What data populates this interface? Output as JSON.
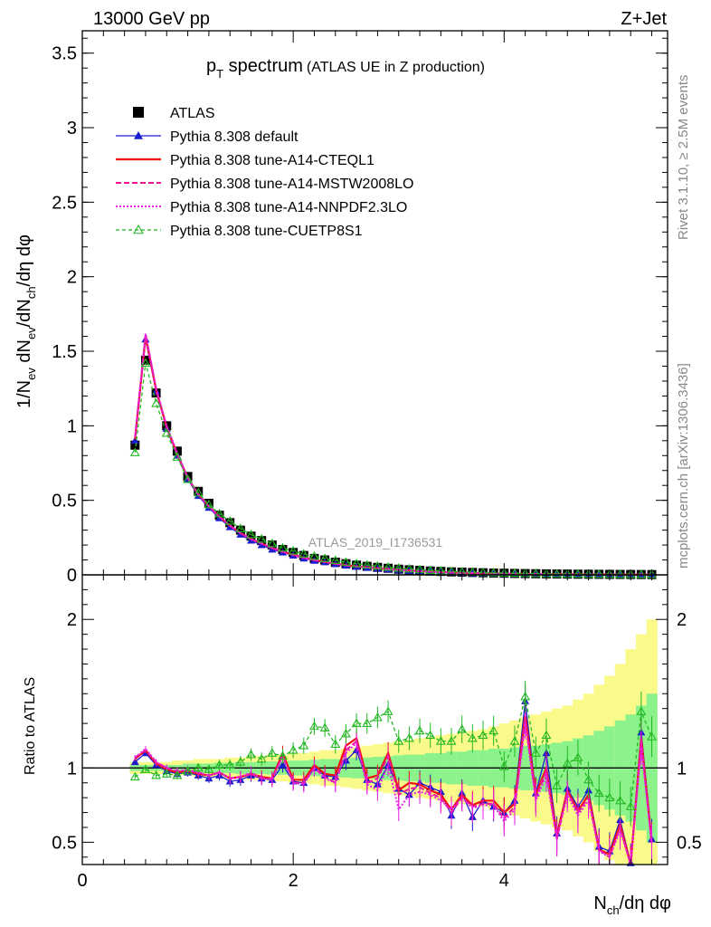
{
  "header": {
    "energy": "13000 GeV pp",
    "process": "Z+Jet",
    "analysis_id": "ATLAS_2019_I1736531",
    "rivet_info": "Rivet 3.1.10, ≥ 2.5M events",
    "source": "mcplots.cern.ch [arXiv:1306.3436]"
  },
  "colors": {
    "data": "#000000",
    "default": "#1c1ccf",
    "cteql1": "#f01010",
    "mstw": "#f0149a",
    "nnpdf": "#e81ee8",
    "cuetp8s1": "#22b822",
    "band_inner": "#8cf28c",
    "band_outer": "#fafa8a"
  },
  "chart_data": [
    {
      "type": "line",
      "panel": "main",
      "title_main": "p",
      "title_sub": "T",
      "title_rest": " spectrum",
      "title_small": "(ATLAS UE in Z production)",
      "ylabel_parts": [
        "1/N",
        "ev",
        " dN",
        "ev",
        "/dN",
        "ch",
        "/dη dφ"
      ],
      "xlabel_parts": [
        "N",
        "ch",
        "/dη dφ"
      ],
      "xlim": [
        0,
        5.55
      ],
      "ylim": [
        0,
        3.65
      ],
      "x_ticks": [
        0,
        2,
        4
      ],
      "y_ticks": [
        0,
        0.5,
        1,
        1.5,
        2,
        2.5,
        3,
        3.5
      ],
      "y_tick_labels": [
        "0",
        "0.5",
        "1",
        "1.5",
        "2",
        "2.5",
        "3",
        "3.5"
      ],
      "legend_position": "top-left",
      "x": [
        0.5,
        0.6,
        0.7,
        0.8,
        0.9,
        1.0,
        1.1,
        1.2,
        1.3,
        1.4,
        1.5,
        1.6,
        1.7,
        1.8,
        1.9,
        2.0,
        2.1,
        2.2,
        2.3,
        2.4,
        2.5,
        2.6,
        2.7,
        2.8,
        2.9,
        3.0,
        3.1,
        3.2,
        3.3,
        3.4,
        3.5,
        3.6,
        3.7,
        3.8,
        3.9,
        4.0,
        4.1,
        4.2,
        4.3,
        4.4,
        4.5,
        4.6,
        4.7,
        4.8,
        4.9,
        5.0,
        5.1,
        5.2,
        5.3,
        5.4
      ],
      "series": [
        {
          "name": "ATLAS",
          "key": "data",
          "marker": "square",
          "values": [
            0.87,
            1.44,
            1.22,
            1.0,
            0.83,
            0.66,
            0.56,
            0.48,
            0.4,
            0.35,
            0.3,
            0.26,
            0.23,
            0.2,
            0.17,
            0.15,
            0.13,
            0.11,
            0.1,
            0.085,
            0.075,
            0.065,
            0.057,
            0.05,
            0.044,
            0.038,
            0.034,
            0.03,
            0.026,
            0.023,
            0.02,
            0.018,
            0.016,
            0.014,
            0.012,
            0.011,
            0.0095,
            0.0085,
            0.0075,
            0.0066,
            0.0058,
            0.0051,
            0.0045,
            0.004,
            0.0035,
            0.0031,
            0.0027,
            0.0024,
            0.0021,
            0.0019
          ]
        },
        {
          "name": "Pythia 8.308 default",
          "key": "default",
          "marker": "triangle",
          "values": [
            0.9,
            1.58,
            1.23,
            0.98,
            0.8,
            0.64,
            0.53,
            0.45,
            0.38,
            0.32,
            0.27,
            0.23,
            0.2,
            0.17,
            0.15,
            0.13,
            0.11,
            0.095,
            0.085,
            0.072,
            0.062,
            0.055,
            0.048,
            0.042,
            0.036,
            0.031,
            0.027,
            0.024,
            0.021,
            0.018,
            0.015,
            0.013,
            0.011,
            0.0095,
            0.0085,
            0.0075,
            0.0065,
            0.0058,
            0.005,
            0.0044,
            0.0039,
            0.0034,
            0.003,
            0.0026,
            0.0023,
            0.002,
            0.0018,
            0.0015,
            0.0013,
            0.0011
          ]
        },
        {
          "name": "Pythia 8.308 tune-A14-CTEQL1",
          "key": "cteql1",
          "marker": "none",
          "values": [
            0.91,
            1.6,
            1.24,
            0.99,
            0.81,
            0.65,
            0.54,
            0.46,
            0.39,
            0.33,
            0.28,
            0.24,
            0.21,
            0.18,
            0.155,
            0.135,
            0.115,
            0.1,
            0.087,
            0.075,
            0.065,
            0.057,
            0.05,
            0.044,
            0.038,
            0.033,
            0.029,
            0.025,
            0.022,
            0.019,
            0.016,
            0.014,
            0.012,
            0.01,
            0.009,
            0.008,
            0.007,
            0.006,
            0.0052,
            0.0046,
            0.004,
            0.0035,
            0.0031,
            0.0027,
            0.0024,
            0.0021,
            0.0018,
            0.0016,
            0.0014,
            0.0012
          ]
        },
        {
          "name": "Pythia 8.308 tune-A14-MSTW2008LO",
          "key": "mstw",
          "marker": "none",
          "values": [
            0.92,
            1.61,
            1.25,
            0.99,
            0.81,
            0.65,
            0.54,
            0.46,
            0.39,
            0.33,
            0.28,
            0.24,
            0.21,
            0.18,
            0.155,
            0.133,
            0.114,
            0.098,
            0.086,
            0.074,
            0.064,
            0.056,
            0.049,
            0.043,
            0.037,
            0.032,
            0.028,
            0.025,
            0.021,
            0.018,
            0.016,
            0.014,
            0.012,
            0.01,
            0.009,
            0.008,
            0.007,
            0.006,
            0.0052,
            0.0045,
            0.0039,
            0.0034,
            0.003,
            0.0026,
            0.0023,
            0.002,
            0.0017,
            0.0015,
            0.0013,
            0.0011
          ]
        },
        {
          "name": "Pythia 8.308 tune-A14-NNPDF2.3LO",
          "key": "nnpdf",
          "marker": "none",
          "values": [
            0.93,
            1.62,
            1.25,
            1.0,
            0.82,
            0.65,
            0.54,
            0.46,
            0.39,
            0.33,
            0.28,
            0.24,
            0.21,
            0.18,
            0.155,
            0.133,
            0.114,
            0.098,
            0.086,
            0.074,
            0.064,
            0.056,
            0.049,
            0.043,
            0.037,
            0.032,
            0.028,
            0.025,
            0.021,
            0.018,
            0.016,
            0.014,
            0.012,
            0.01,
            0.009,
            0.008,
            0.007,
            0.006,
            0.0052,
            0.0045,
            0.0039,
            0.0034,
            0.003,
            0.0026,
            0.0023,
            0.002,
            0.0017,
            0.0015,
            0.0013,
            0.0011
          ]
        },
        {
          "name": "Pythia 8.308 tune-CUETP8S1",
          "key": "cuetp8s1",
          "marker": "open-triangle",
          "values": [
            0.82,
            1.42,
            1.15,
            0.95,
            0.79,
            0.64,
            0.55,
            0.47,
            0.41,
            0.36,
            0.31,
            0.27,
            0.24,
            0.21,
            0.18,
            0.16,
            0.14,
            0.125,
            0.11,
            0.097,
            0.085,
            0.075,
            0.066,
            0.058,
            0.051,
            0.045,
            0.04,
            0.035,
            0.03,
            0.026,
            0.023,
            0.02,
            0.018,
            0.016,
            0.014,
            0.012,
            0.011,
            0.0095,
            0.0083,
            0.0072,
            0.0063,
            0.0055,
            0.0048,
            0.0042,
            0.0037,
            0.0032,
            0.0028,
            0.0025,
            0.0022,
            0.0019
          ]
        }
      ]
    },
    {
      "type": "line",
      "panel": "ratio",
      "ylabel": "Ratio to ATLAS",
      "xlim": [
        0,
        5.55
      ],
      "ylim": [
        0.35,
        2.3
      ],
      "x_ticks": [
        0,
        2,
        4
      ],
      "x_tick_labels": [
        "0",
        "2",
        "4"
      ],
      "y_ticks": [
        0.5,
        1,
        2
      ],
      "y_tick_labels": [
        "0.5",
        "1",
        "2"
      ],
      "x": [
        0.5,
        0.6,
        0.7,
        0.8,
        0.9,
        1.0,
        1.1,
        1.2,
        1.3,
        1.4,
        1.5,
        1.6,
        1.7,
        1.8,
        1.9,
        2.0,
        2.1,
        2.2,
        2.3,
        2.4,
        2.5,
        2.6,
        2.7,
        2.8,
        2.9,
        3.0,
        3.1,
        3.2,
        3.3,
        3.4,
        3.5,
        3.6,
        3.7,
        3.8,
        3.9,
        4.0,
        4.1,
        4.2,
        4.3,
        4.4,
        4.5,
        4.6,
        4.7,
        4.8,
        4.9,
        5.0,
        5.1,
        5.2,
        5.3,
        5.4
      ],
      "band_inner_halfwidth": [
        0.02,
        0.02,
        0.02,
        0.02,
        0.02,
        0.03,
        0.03,
        0.03,
        0.035,
        0.035,
        0.04,
        0.04,
        0.04,
        0.045,
        0.045,
        0.05,
        0.05,
        0.055,
        0.06,
        0.06,
        0.065,
        0.07,
        0.07,
        0.075,
        0.08,
        0.085,
        0.09,
        0.09,
        0.1,
        0.1,
        0.11,
        0.11,
        0.12,
        0.12,
        0.13,
        0.13,
        0.14,
        0.15,
        0.15,
        0.16,
        0.17,
        0.18,
        0.2,
        0.22,
        0.25,
        0.28,
        0.32,
        0.36,
        0.42,
        0.5
      ],
      "band_outer_halfwidth": [
        0.04,
        0.04,
        0.04,
        0.04,
        0.05,
        0.05,
        0.06,
        0.06,
        0.06,
        0.07,
        0.07,
        0.08,
        0.08,
        0.09,
        0.09,
        0.1,
        0.1,
        0.11,
        0.12,
        0.12,
        0.13,
        0.14,
        0.15,
        0.16,
        0.17,
        0.18,
        0.19,
        0.2,
        0.21,
        0.22,
        0.23,
        0.24,
        0.25,
        0.26,
        0.28,
        0.3,
        0.32,
        0.34,
        0.36,
        0.38,
        0.4,
        0.42,
        0.46,
        0.5,
        0.56,
        0.62,
        0.7,
        0.8,
        0.9,
        1.0
      ],
      "series": [
        {
          "name": "Pythia 8.308 default",
          "key": "default",
          "values": [
            1.04,
            1.1,
            1.02,
            0.98,
            0.96,
            0.97,
            0.95,
            0.93,
            0.95,
            0.91,
            0.92,
            0.95,
            0.93,
            0.92,
            1.02,
            0.91,
            0.9,
            1.0,
            0.95,
            0.94,
            1.05,
            1.12,
            0.92,
            0.89,
            1.02,
            0.86,
            0.82,
            0.9,
            0.87,
            0.84,
            0.68,
            0.83,
            0.67,
            0.78,
            0.74,
            0.7,
            0.78,
            1.45,
            0.83,
            1.1,
            0.56,
            0.86,
            0.74,
            0.85,
            0.47,
            0.44,
            0.65,
            0.36,
            1.24,
            0.52
          ]
        },
        {
          "name": "Pythia 8.308 tune-A14-CTEQL1",
          "key": "cteql1",
          "values": [
            1.06,
            1.12,
            1.03,
            0.99,
            0.97,
            0.98,
            0.96,
            0.95,
            0.97,
            0.93,
            0.94,
            0.96,
            0.94,
            0.93,
            1.1,
            0.92,
            0.92,
            1.02,
            0.96,
            0.95,
            1.15,
            1.2,
            0.93,
            0.95,
            1.1,
            0.85,
            0.9,
            0.89,
            0.85,
            0.82,
            0.72,
            0.82,
            0.75,
            0.78,
            0.78,
            0.7,
            0.76,
            1.35,
            0.82,
            1.0,
            0.54,
            0.85,
            0.71,
            0.82,
            0.45,
            0.42,
            0.62,
            0.34,
            1.2,
            0.5
          ]
        },
        {
          "name": "Pythia 8.308 tune-A14-MSTW2008LO",
          "key": "mstw",
          "values": [
            1.07,
            1.12,
            1.04,
            1.0,
            0.98,
            0.98,
            0.97,
            0.95,
            0.97,
            0.93,
            0.94,
            0.96,
            0.93,
            0.93,
            1.08,
            0.9,
            0.9,
            1.0,
            0.94,
            0.9,
            1.12,
            1.18,
            0.9,
            0.93,
            1.08,
            0.82,
            0.86,
            0.87,
            0.83,
            0.8,
            0.7,
            0.8,
            0.74,
            0.76,
            0.76,
            0.66,
            0.74,
            1.32,
            0.8,
            0.98,
            0.52,
            0.84,
            0.7,
            0.8,
            0.45,
            0.4,
            0.6,
            0.33,
            1.18,
            0.49
          ]
        },
        {
          "name": "Pythia 8.308 tune-A14-NNPDF2.3LO",
          "key": "nnpdf",
          "values": [
            1.07,
            1.13,
            1.04,
            1.0,
            0.98,
            0.99,
            0.97,
            0.95,
            0.97,
            0.93,
            0.94,
            0.97,
            0.93,
            0.92,
            1.08,
            0.9,
            0.89,
            1.0,
            0.93,
            0.9,
            1.1,
            1.17,
            0.89,
            0.85,
            1.02,
            0.72,
            0.82,
            0.84,
            0.82,
            0.78,
            0.72,
            0.8,
            0.73,
            0.75,
            0.75,
            0.64,
            0.72,
            1.3,
            0.78,
            0.95,
            0.52,
            0.82,
            0.68,
            0.78,
            0.44,
            0.4,
            0.58,
            0.32,
            1.15,
            0.48
          ]
        },
        {
          "name": "Pythia 8.308 tune-CUETP8S1",
          "key": "cuetp8s1",
          "values": [
            0.94,
            0.99,
            0.95,
            0.96,
            0.95,
            0.98,
            1.0,
            0.99,
            1.02,
            1.02,
            1.04,
            1.09,
            1.06,
            1.1,
            1.08,
            1.12,
            1.15,
            1.28,
            1.27,
            1.16,
            1.23,
            1.3,
            1.3,
            1.34,
            1.38,
            1.18,
            1.2,
            1.25,
            1.22,
            1.18,
            1.18,
            1.26,
            1.2,
            1.22,
            1.25,
            1.01,
            1.18,
            1.48,
            1.1,
            1.22,
            0.88,
            1.03,
            1.07,
            0.92,
            0.83,
            0.8,
            0.78,
            0.74,
            1.38,
            1.21
          ]
        }
      ]
    }
  ]
}
